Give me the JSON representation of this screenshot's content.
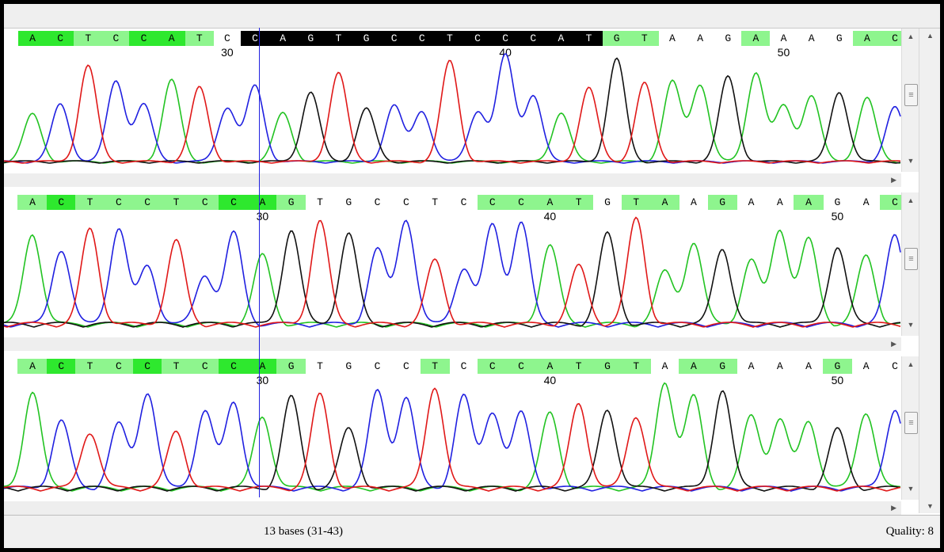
{
  "colors": {
    "A": "#22c322",
    "C": "#2020e0",
    "G": "#111111",
    "T": "#e01818",
    "hl_bright": "#2ee82e",
    "hl_light": "#8ef58e",
    "sel": "#000000"
  },
  "tracks": [
    {
      "bases": [
        {
          "b": "A",
          "hl": "bright"
        },
        {
          "b": "C",
          "hl": "bright"
        },
        {
          "b": "T",
          "hl": "light"
        },
        {
          "b": "C",
          "hl": "light"
        },
        {
          "b": "C",
          "hl": "bright"
        },
        {
          "b": "A",
          "hl": "bright"
        },
        {
          "b": "T",
          "hl": "light"
        },
        {
          "b": "C",
          "hl": "none"
        },
        {
          "b": "C",
          "hl": "sel"
        },
        {
          "b": "A",
          "hl": "sel"
        },
        {
          "b": "G",
          "hl": "sel"
        },
        {
          "b": "T",
          "hl": "sel"
        },
        {
          "b": "G",
          "hl": "sel"
        },
        {
          "b": "C",
          "hl": "sel"
        },
        {
          "b": "C",
          "hl": "sel"
        },
        {
          "b": "T",
          "hl": "sel"
        },
        {
          "b": "C",
          "hl": "sel"
        },
        {
          "b": "C",
          "hl": "sel"
        },
        {
          "b": "C",
          "hl": "sel"
        },
        {
          "b": "A",
          "hl": "sel"
        },
        {
          "b": "T",
          "hl": "sel"
        },
        {
          "b": "G",
          "hl": "light"
        },
        {
          "b": "T",
          "hl": "light"
        },
        {
          "b": "A",
          "hl": "none"
        },
        {
          "b": "A",
          "hl": "none"
        },
        {
          "b": "G",
          "hl": "none"
        },
        {
          "b": "A",
          "hl": "light"
        },
        {
          "b": "A",
          "hl": "none"
        },
        {
          "b": "A",
          "hl": "none"
        },
        {
          "b": "G",
          "hl": "none"
        },
        {
          "b": "A",
          "hl": "light"
        },
        {
          "b": "C",
          "hl": "light"
        }
      ],
      "ticks": [
        {
          "label": "30",
          "pos": 7
        },
        {
          "label": "40",
          "pos": 17
        },
        {
          "label": "50",
          "pos": 27
        }
      ]
    },
    {
      "bases": [
        {
          "b": "A",
          "hl": "light"
        },
        {
          "b": "C",
          "hl": "bright"
        },
        {
          "b": "T",
          "hl": "light"
        },
        {
          "b": "C",
          "hl": "light"
        },
        {
          "b": "C",
          "hl": "light"
        },
        {
          "b": "T",
          "hl": "light"
        },
        {
          "b": "C",
          "hl": "light"
        },
        {
          "b": "C",
          "hl": "bright"
        },
        {
          "b": "A",
          "hl": "bright"
        },
        {
          "b": "G",
          "hl": "light"
        },
        {
          "b": "T",
          "hl": "none"
        },
        {
          "b": "G",
          "hl": "none"
        },
        {
          "b": "C",
          "hl": "none"
        },
        {
          "b": "C",
          "hl": "none"
        },
        {
          "b": "T",
          "hl": "none"
        },
        {
          "b": "C",
          "hl": "none"
        },
        {
          "b": "C",
          "hl": "light"
        },
        {
          "b": "C",
          "hl": "light"
        },
        {
          "b": "A",
          "hl": "light"
        },
        {
          "b": "T",
          "hl": "light"
        },
        {
          "b": "G",
          "hl": "none"
        },
        {
          "b": "T",
          "hl": "light"
        },
        {
          "b": "A",
          "hl": "light"
        },
        {
          "b": "A",
          "hl": "none"
        },
        {
          "b": "G",
          "hl": "light"
        },
        {
          "b": "A",
          "hl": "none"
        },
        {
          "b": "A",
          "hl": "none"
        },
        {
          "b": "A",
          "hl": "light"
        },
        {
          "b": "G",
          "hl": "none"
        },
        {
          "b": "A",
          "hl": "none"
        },
        {
          "b": "C",
          "hl": "light"
        }
      ],
      "ticks": [
        {
          "label": "30",
          "pos": 8
        },
        {
          "label": "40",
          "pos": 18
        },
        {
          "label": "50",
          "pos": 28
        }
      ]
    },
    {
      "bases": [
        {
          "b": "A",
          "hl": "light"
        },
        {
          "b": "C",
          "hl": "bright"
        },
        {
          "b": "T",
          "hl": "light"
        },
        {
          "b": "C",
          "hl": "light"
        },
        {
          "b": "C",
          "hl": "bright"
        },
        {
          "b": "T",
          "hl": "light"
        },
        {
          "b": "C",
          "hl": "light"
        },
        {
          "b": "C",
          "hl": "bright"
        },
        {
          "b": "A",
          "hl": "bright"
        },
        {
          "b": "G",
          "hl": "light"
        },
        {
          "b": "T",
          "hl": "none"
        },
        {
          "b": "G",
          "hl": "none"
        },
        {
          "b": "C",
          "hl": "none"
        },
        {
          "b": "C",
          "hl": "none"
        },
        {
          "b": "T",
          "hl": "light"
        },
        {
          "b": "C",
          "hl": "none"
        },
        {
          "b": "C",
          "hl": "light"
        },
        {
          "b": "C",
          "hl": "light"
        },
        {
          "b": "A",
          "hl": "light"
        },
        {
          "b": "T",
          "hl": "light"
        },
        {
          "b": "G",
          "hl": "light"
        },
        {
          "b": "T",
          "hl": "light"
        },
        {
          "b": "A",
          "hl": "none"
        },
        {
          "b": "A",
          "hl": "light"
        },
        {
          "b": "G",
          "hl": "light"
        },
        {
          "b": "A",
          "hl": "none"
        },
        {
          "b": "A",
          "hl": "none"
        },
        {
          "b": "A",
          "hl": "none"
        },
        {
          "b": "G",
          "hl": "light"
        },
        {
          "b": "A",
          "hl": "none"
        },
        {
          "b": "C",
          "hl": "none"
        }
      ],
      "ticks": [
        {
          "label": "30",
          "pos": 8
        },
        {
          "label": "40",
          "pos": 18
        },
        {
          "label": "50",
          "pos": 28
        }
      ]
    }
  ],
  "status": {
    "range": "13 bases (31-43)",
    "quality": "Quality: 8"
  }
}
